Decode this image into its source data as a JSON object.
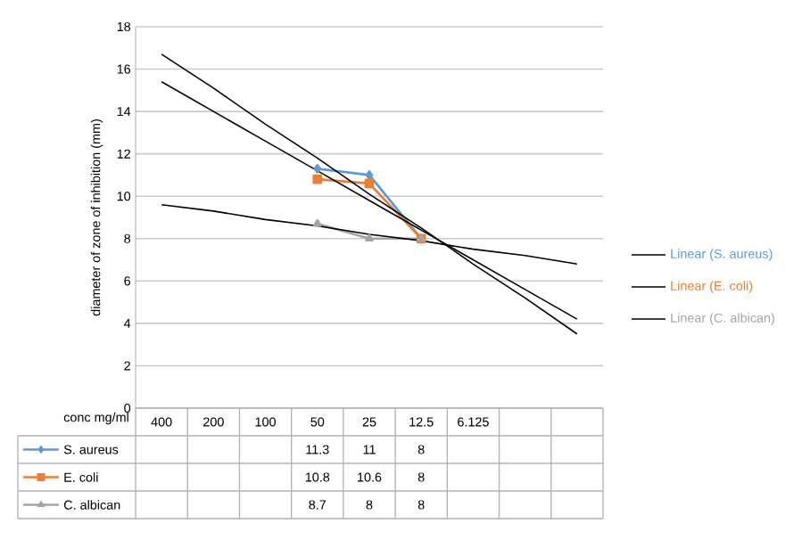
{
  "chart_data": {
    "type": "line",
    "xlabel": "conc mg/ml",
    "ylabel": "diameter of zone of inhibition (mm)",
    "categories": [
      "400",
      "200",
      "100",
      "50",
      "25",
      "12.5",
      "6.125",
      null,
      null
    ],
    "ylim": [
      0,
      18
    ],
    "yticks": [
      0,
      2,
      4,
      6,
      8,
      10,
      12,
      14,
      16,
      18
    ],
    "grid": "y",
    "legend": "right",
    "series": [
      {
        "name": "S. aureus",
        "color": "#5b9bd5",
        "marker": "diamond",
        "values": [
          null,
          null,
          null,
          11.3,
          11,
          8,
          null,
          null,
          null
        ],
        "value_labels": [
          null,
          null,
          null,
          "11.3",
          "11",
          "8",
          null,
          null,
          null
        ]
      },
      {
        "name": "E. coli",
        "color": "#ed7d31",
        "marker": "square",
        "values": [
          null,
          null,
          null,
          10.8,
          10.6,
          8,
          null,
          null,
          null
        ],
        "value_labels": [
          null,
          null,
          null,
          "10.8",
          "10.6",
          "8",
          null,
          null,
          null
        ]
      },
      {
        "name": "C. albican",
        "color": "#a5a5a5",
        "marker": "triangle",
        "values": [
          null,
          null,
          null,
          8.7,
          8,
          8,
          null,
          null,
          null
        ],
        "value_labels": [
          null,
          null,
          null,
          "8.7",
          "8",
          "8",
          null,
          null,
          null
        ]
      },
      {
        "name": "Linear (S. aureus)",
        "marker": "none",
        "color": "#000000",
        "values": [
          16.7,
          15.1,
          13.4,
          11.8,
          10.1,
          8.5,
          6.8,
          5.2,
          3.5
        ]
      },
      {
        "name": "Linear (E. coli)",
        "marker": "none",
        "color": "#000000",
        "values": [
          15.4,
          14.0,
          12.6,
          11.2,
          9.8,
          8.4,
          7.0,
          5.6,
          4.2
        ]
      },
      {
        "name": "Linear (C. albican)",
        "marker": "none",
        "color": "#000000",
        "values": [
          9.6,
          9.3,
          8.9,
          8.6,
          8.2,
          7.9,
          7.5,
          7.2,
          6.8
        ]
      }
    ]
  }
}
